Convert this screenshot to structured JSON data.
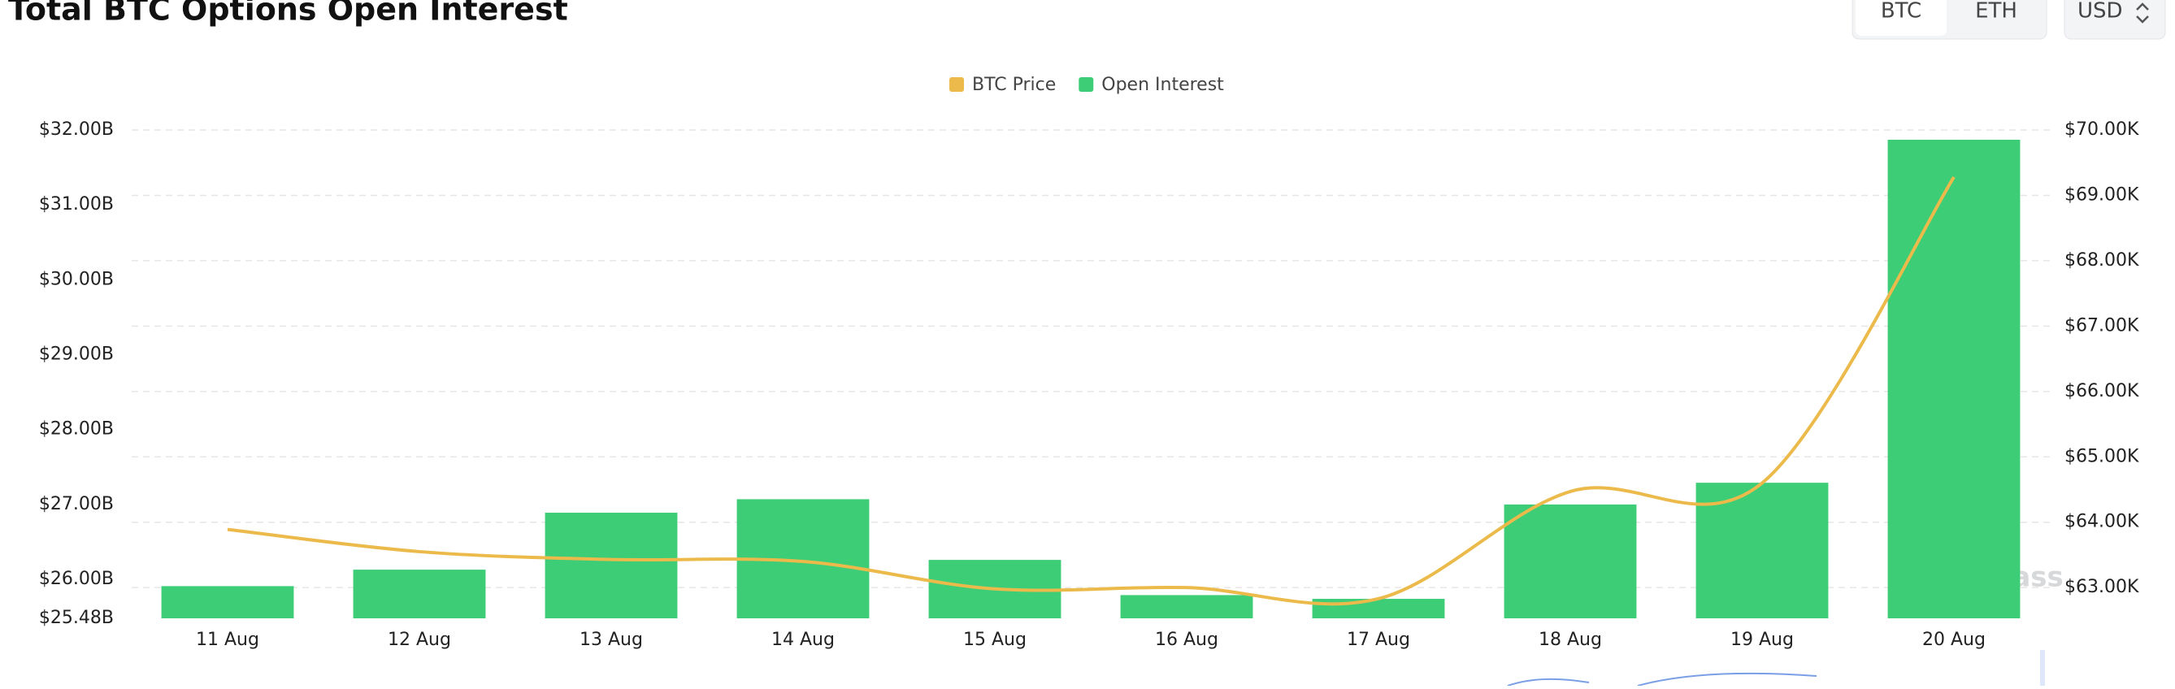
{
  "header": {
    "title": "Total BTC Options Open Interest",
    "toggles": [
      "BTC",
      "ETH"
    ],
    "currency": "USD"
  },
  "chart_data": {
    "type": "bar-line",
    "categories": [
      "11 Aug",
      "12 Aug",
      "13 Aug",
      "14 Aug",
      "15 Aug",
      "16 Aug",
      "17 Aug",
      "18 Aug",
      "19 Aug",
      "20 Aug"
    ],
    "series": [
      {
        "name": "Open Interest",
        "type": "bar",
        "color": "#3ecd77",
        "values": [
          25.91,
          26.13,
          26.89,
          27.07,
          26.26,
          25.79,
          25.74,
          27.0,
          27.29,
          31.87
        ]
      },
      {
        "name": "BTC Price",
        "type": "line",
        "axis": "y2",
        "color": "#ebba4b",
        "values": [
          63.89,
          63.55,
          63.43,
          63.4,
          62.98,
          63.0,
          62.83,
          64.47,
          64.6,
          69.28
        ]
      }
    ],
    "ylim": [
      25.48,
      32.0
    ],
    "yticks": [
      {
        "value": 25.48,
        "label": "$25.48B"
      },
      {
        "value": 26,
        "label": "$26.00B"
      },
      {
        "value": 27,
        "label": "$27.00B"
      },
      {
        "value": 28,
        "label": "$28.00B"
      },
      {
        "value": 29,
        "label": "$29.00B"
      },
      {
        "value": 30,
        "label": "$30.00B"
      },
      {
        "value": 31,
        "label": "$31.00B"
      },
      {
        "value": 32,
        "label": "$32.00B"
      }
    ],
    "y2lim": [
      62.53,
      70.0
    ],
    "y2ticks": [
      {
        "value": 63,
        "label": "$63.00K"
      },
      {
        "value": 64,
        "label": "$64.00K"
      },
      {
        "value": 65,
        "label": "$65.00K"
      },
      {
        "value": 66,
        "label": "$66.00K"
      },
      {
        "value": 67,
        "label": "$67.00K"
      },
      {
        "value": 68,
        "label": "$68.00K"
      },
      {
        "value": 69,
        "label": "$69.00K"
      },
      {
        "value": 70,
        "label": "$70.00K"
      }
    ],
    "grid": true,
    "legend": "top",
    "watermark": "coinglass"
  }
}
